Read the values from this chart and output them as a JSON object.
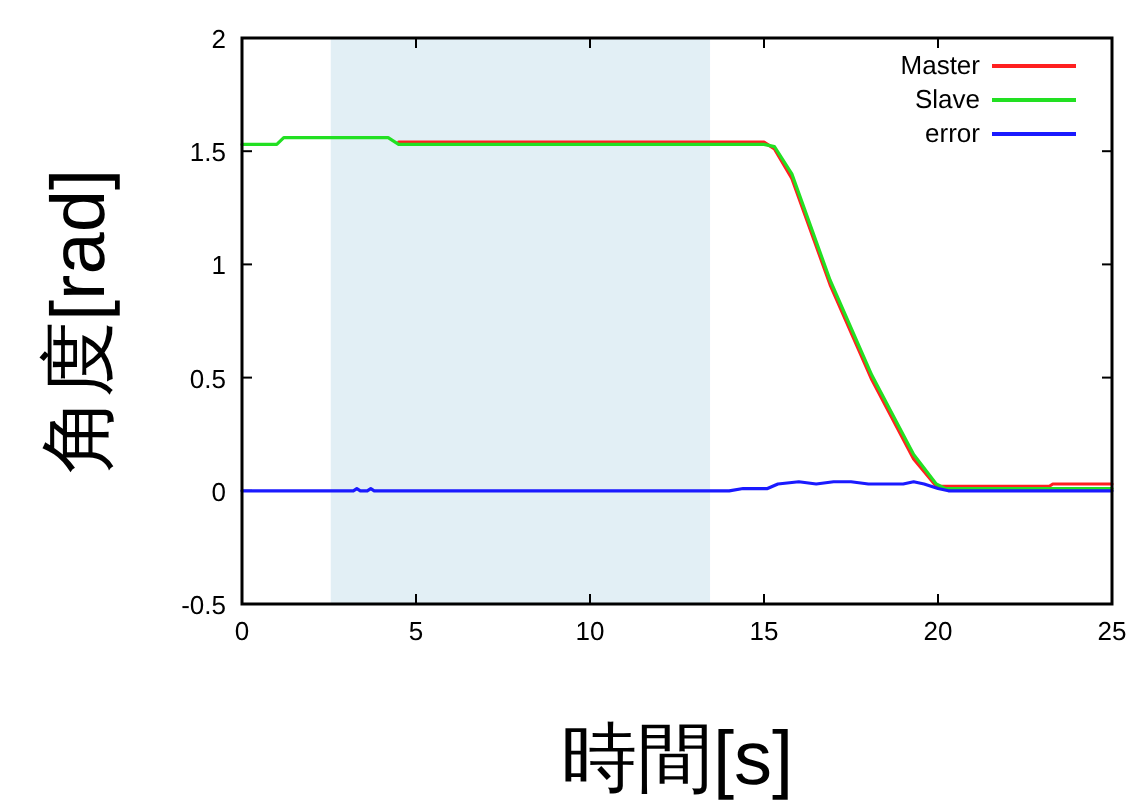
{
  "chart_data": {
    "type": "line",
    "xlabel": "時間[s]",
    "ylabel": "角度[rad]",
    "xlim": [
      0,
      25
    ],
    "xticks": [
      0,
      5,
      10,
      15,
      20,
      25
    ],
    "ylim": [
      -0.5,
      2
    ],
    "yticks": [
      -0.5,
      0,
      0.5,
      1,
      1.5,
      2
    ],
    "legend": "top right",
    "bands": [
      {
        "axis": "x",
        "from": 2.55,
        "to": 13.45,
        "color": "#e2eff5"
      }
    ],
    "series": [
      {
        "name": "Master",
        "color": "#ff2020",
        "x": [
          4.5,
          12.5,
          14.5,
          15.0,
          15.3,
          15.8,
          16.9,
          18.1,
          19.3,
          19.95,
          20.2,
          23.2,
          23.3,
          25
        ],
        "values": [
          1.54,
          1.54,
          1.54,
          1.54,
          1.51,
          1.38,
          0.91,
          0.49,
          0.14,
          0.02,
          0.02,
          0.02,
          0.03,
          0.03
        ]
      },
      {
        "name": "Slave",
        "color": "#22e022",
        "x": [
          0,
          1.0,
          1.2,
          4.2,
          4.5,
          12.5,
          13.4,
          14.5,
          15.0,
          15.3,
          15.8,
          16.9,
          18.1,
          19.3,
          19.95,
          20.2,
          23.2,
          23.3,
          25
        ],
        "values": [
          1.53,
          1.53,
          1.56,
          1.56,
          1.53,
          1.53,
          1.53,
          1.53,
          1.53,
          1.52,
          1.4,
          0.93,
          0.51,
          0.16,
          0.03,
          0.01,
          0.01,
          0.01,
          0.01
        ]
      },
      {
        "name": "error",
        "color": "#1a1aff",
        "x": [
          0,
          3.2,
          3.3,
          3.4,
          3.6,
          3.7,
          3.8,
          14.0,
          14.4,
          15.1,
          15.4,
          16.0,
          16.5,
          17.0,
          17.5,
          18.0,
          18.5,
          19.0,
          19.3,
          19.6,
          20.0,
          20.3,
          23.2,
          23.3,
          25
        ],
        "values": [
          0,
          0,
          0.01,
          0,
          0,
          0.01,
          0,
          0,
          0.01,
          0.01,
          0.03,
          0.04,
          0.03,
          0.04,
          0.04,
          0.03,
          0.03,
          0.03,
          0.04,
          0.03,
          0.01,
          0,
          0,
          0,
          0
        ]
      }
    ]
  }
}
